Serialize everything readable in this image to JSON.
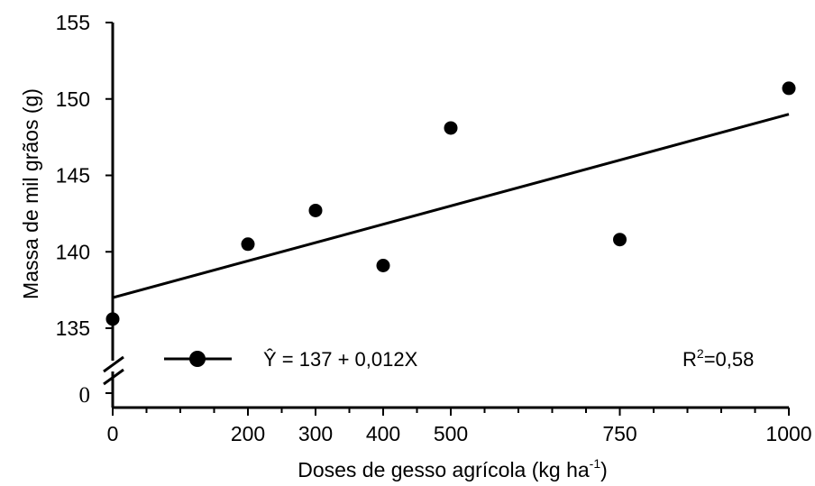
{
  "chart_data": {
    "type": "scatter",
    "xlabel": "Doses de gesso agrícola (kg ha",
    "xlabel_sup": "-1",
    "xlabel_end": ")",
    "ylabel": "Massa de mil grãos (g)",
    "x_ticks": [
      "0",
      "200",
      "300",
      "400",
      "500",
      "750",
      "1000"
    ],
    "y_ticks": [
      "135",
      "140",
      "145",
      "150",
      "155"
    ],
    "y_break_label": "0",
    "xlim": [
      0,
      1000
    ],
    "ylim": [
      135,
      155
    ],
    "y_axis_break": true,
    "grid": false,
    "points": [
      {
        "x": 0,
        "y": 135.6
      },
      {
        "x": 200,
        "y": 140.5
      },
      {
        "x": 300,
        "y": 142.7
      },
      {
        "x": 400,
        "y": 139.1
      },
      {
        "x": 500,
        "y": 148.1
      },
      {
        "x": 750,
        "y": 140.8
      },
      {
        "x": 1000,
        "y": 150.7
      }
    ],
    "fit": {
      "intercept": 137,
      "slope": 0.012
    },
    "legend": {
      "equation": "Ŷ = 137 + 0,012X",
      "r2_prefix": "R",
      "r2_sup": "2",
      "r2_suffix": "=0,58",
      "placement": "bottom"
    }
  }
}
